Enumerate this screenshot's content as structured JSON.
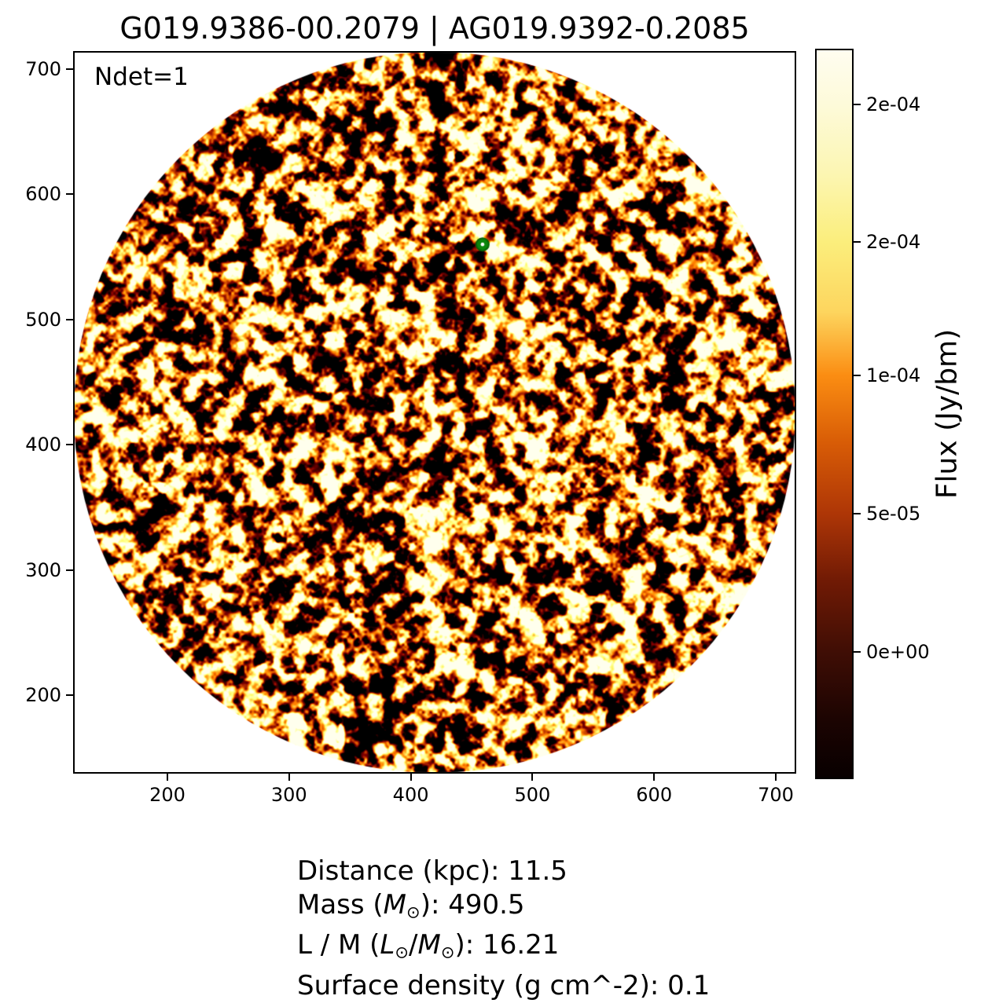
{
  "figure": {
    "background": "#ffffff"
  },
  "chart_data": {
    "type": "heatmap",
    "title": "G019.9386-00.2079 | AG019.9392-0.2085",
    "annotation": "Ndet=1",
    "xlabel": "",
    "ylabel": "",
    "xlim": [
      122.5,
      716.8
    ],
    "ylim": [
      137.3,
      714.4
    ],
    "x_ticks": [
      200,
      300,
      400,
      500,
      600,
      700
    ],
    "y_ticks": [
      200,
      300,
      400,
      500,
      600,
      700
    ],
    "grid": false,
    "image": {
      "description": "Circular aperture filled with speckled interferometric noise (blob scale ~12 px) rendered in an afmhot black-red-orange-yellow-white colormap on a white background",
      "mask_shape": "circle",
      "mask_center_data": [
        419.6,
        425.9
      ],
      "mask_radius_data": 297.1,
      "colormap": "afmhot"
    },
    "marker": {
      "x": 459,
      "y": 560,
      "shape": "circle",
      "fill": "#0b870b",
      "edge": "#066406",
      "center_dot_color": "#ffffff",
      "radius_px": 8
    },
    "colorbar": {
      "label": "Flux (Jy/bm)",
      "ticks": [
        {
          "label": "2e-04",
          "pos": 0.076
        },
        {
          "label": "2e-04",
          "pos": 0.264
        },
        {
          "label": "1e-04",
          "pos": 0.447
        },
        {
          "label": "5e-05",
          "pos": 0.637
        },
        {
          "label": "0e+00",
          "pos": 0.826
        }
      ],
      "gradient": [
        {
          "pos": 0.0,
          "color": "#fffdf0"
        },
        {
          "pos": 0.076,
          "color": "#fdfad9"
        },
        {
          "pos": 0.17,
          "color": "#fcf6b2"
        },
        {
          "pos": 0.264,
          "color": "#fbee7c"
        },
        {
          "pos": 0.36,
          "color": "#fdd55e"
        },
        {
          "pos": 0.447,
          "color": "#fb8d12"
        },
        {
          "pos": 0.54,
          "color": "#d85c06"
        },
        {
          "pos": 0.637,
          "color": "#ae3606"
        },
        {
          "pos": 0.73,
          "color": "#701a05"
        },
        {
          "pos": 0.826,
          "color": "#400e05"
        },
        {
          "pos": 0.92,
          "color": "#1c0402"
        },
        {
          "pos": 1.0,
          "color": "#080000"
        }
      ]
    },
    "caption_lines": [
      {
        "text": "Distance (kpc): 11.5",
        "segments": [
          {
            "t": "Distance (kpc): 11.5"
          }
        ]
      },
      {
        "text": "Mass (M⊙): 490.5",
        "segments": [
          {
            "t": "Mass ("
          },
          {
            "t": "M",
            "style": "i"
          },
          {
            "t": "⊙",
            "style": "sub"
          },
          {
            "t": "): 490.5"
          }
        ]
      },
      {
        "text": "L / M (L⊙/M⊙): 16.21",
        "segments": [
          {
            "t": "L / M ("
          },
          {
            "t": "L",
            "style": "i"
          },
          {
            "t": "⊙",
            "style": "sub"
          },
          {
            "t": "/"
          },
          {
            "t": "M",
            "style": "i"
          },
          {
            "t": "⊙",
            "style": "sub"
          },
          {
            "t": "): 16.21"
          }
        ]
      },
      {
        "text": "Surface density (g cm^-2): 0.1",
        "segments": [
          {
            "t": "Surface density (g cm^-2): 0.1"
          }
        ]
      }
    ]
  }
}
